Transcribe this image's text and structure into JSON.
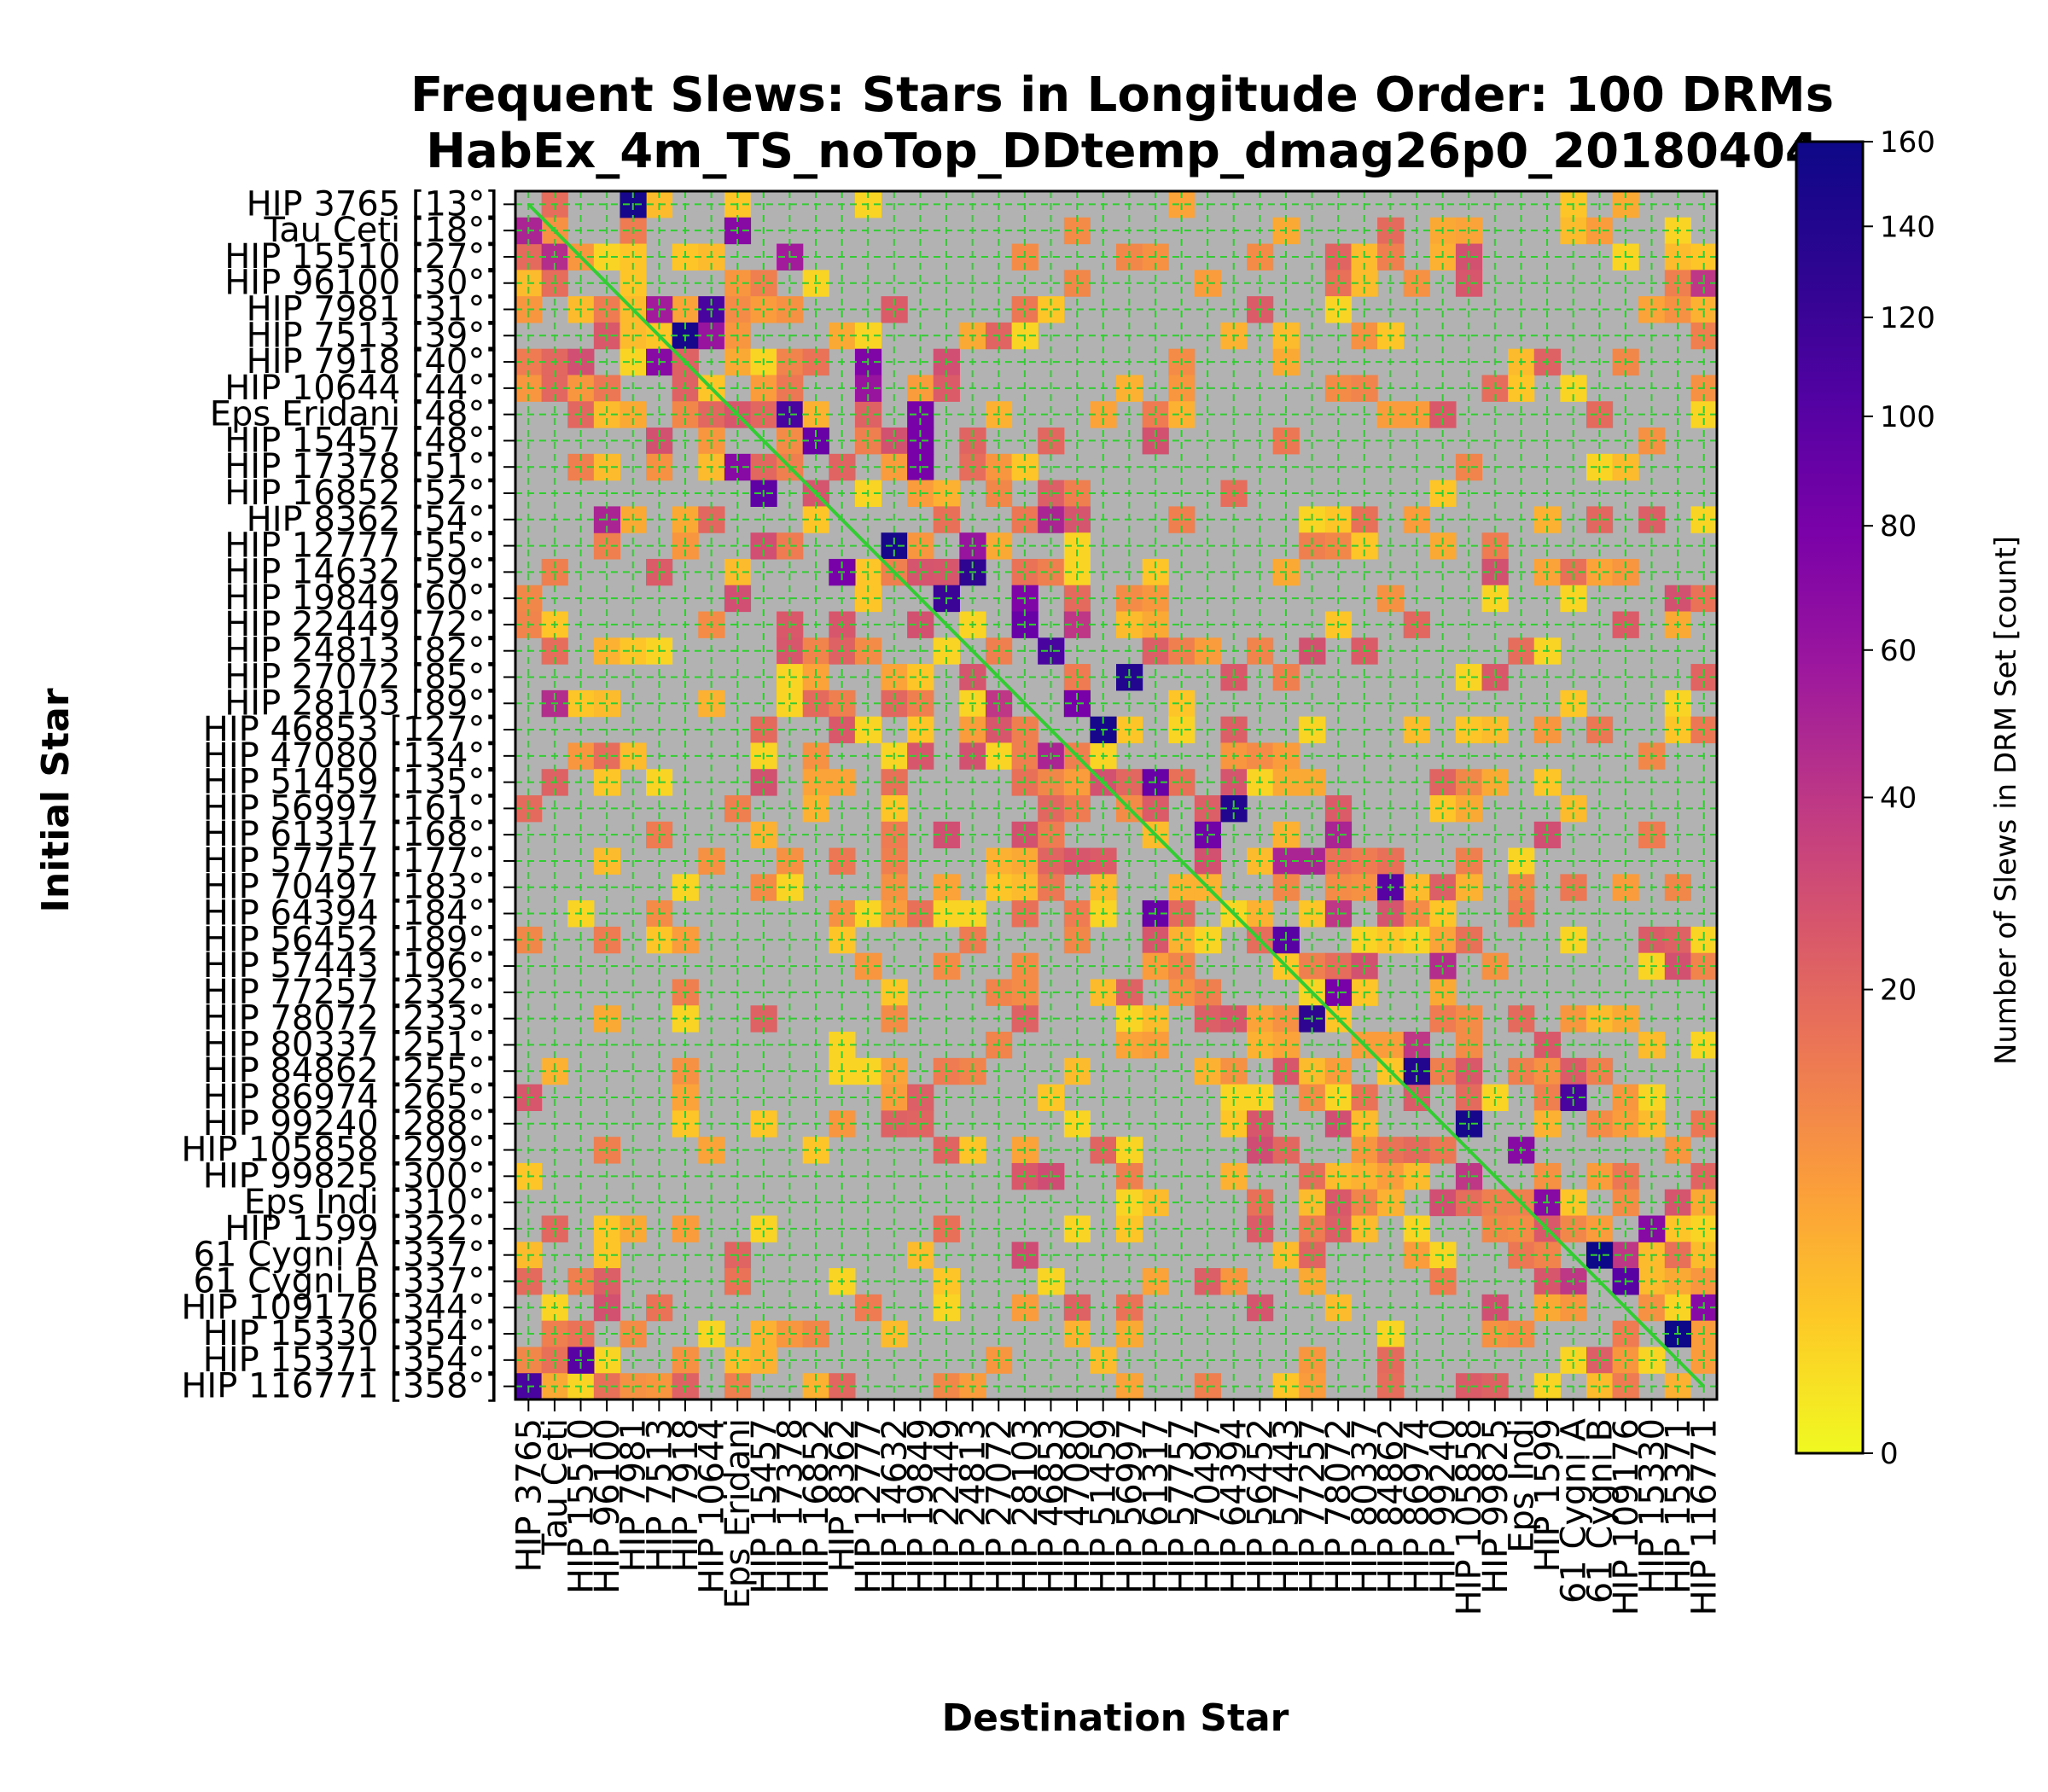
{
  "chart_data": {
    "type": "heatmap",
    "title_line1": "Frequent Slews: Stars in Longitude Order: 100 DRMs",
    "title_line2": "HabEx_4m_TS_noTop_DDtemp_dmag26p0_20180404",
    "xlabel": "Destination Star",
    "ylabel": "Initial Star",
    "colorbar_label": "Number of Slews in DRM Set [count]",
    "colorbar_ticks": [
      0,
      20,
      40,
      60,
      80,
      100,
      120,
      140,
      160
    ],
    "value_range": [
      0,
      160
    ],
    "colormap": "plasma_r",
    "background_color": "#b2b2b2",
    "grid": true,
    "grid_color": "#33cc33",
    "diagonal_color": "#33cc33",
    "rows": [
      "HIP 3765 [13°]",
      "Tau Ceti [18°]",
      "HIP 15510 [27°]",
      "HIP 96100 [30°]",
      "HIP 7981 [31°]",
      "HIP 7513 [39°]",
      "HIP 7918 [40°]",
      "HIP 10644 [44°]",
      "Eps Eridani [48°]",
      "HIP 15457 [48°]",
      "HIP 17378 [51°]",
      "HIP 16852 [52°]",
      "HIP 8362 [54°]",
      "HIP 12777 [55°]",
      "HIP 14632 [59°]",
      "HIP 19849 [60°]",
      "HIP 22449 [72°]",
      "HIP 24813 [82°]",
      "HIP 27072 [85°]",
      "HIP 28103 [89°]",
      "HIP 46853 [127°]",
      "HIP 47080 [134°]",
      "HIP 51459 [135°]",
      "HIP 56997 [161°]",
      "HIP 61317 [168°]",
      "HIP 57757 [177°]",
      "HIP 70497 [183°]",
      "HIP 64394 [184°]",
      "HIP 56452 [189°]",
      "HIP 57443 [196°]",
      "HIP 77257 [232°]",
      "HIP 78072 [233°]",
      "HIP 80337 [251°]",
      "HIP 84862 [255°]",
      "HIP 86974 [265°]",
      "HIP 99240 [288°]",
      "HIP 105858 [299°]",
      "HIP 99825 [300°]",
      "Eps Indi [310°]",
      "HIP 1599 [322°]",
      "61 Cygni A [337°]",
      "61 Cygni B [337°]",
      "HIP 109176 [344°]",
      "HIP 15330 [354°]",
      "HIP 15371 [354°]",
      "HIP 116771 [358°]"
    ],
    "columns": [
      "HIP 3765",
      "Tau Ceti",
      "HIP 15510",
      "HIP 96100",
      "HIP 7981",
      "HIP 7513",
      "HIP 7918",
      "HIP 10644",
      "Eps Eridani",
      "HIP 15457",
      "HIP 17378",
      "HIP 16852",
      "HIP 8362",
      "HIP 12777",
      "HIP 14632",
      "HIP 19849",
      "HIP 22449",
      "HIP 24813",
      "HIP 27072",
      "HIP 28103",
      "HIP 46853",
      "HIP 47080",
      "HIP 51459",
      "HIP 56997",
      "HIP 61317",
      "HIP 57757",
      "HIP 70497",
      "HIP 64394",
      "HIP 56452",
      "HIP 57443",
      "HIP 77257",
      "HIP 78072",
      "HIP 80337",
      "HIP 84862",
      "HIP 86974",
      "HIP 99240",
      "HIP 105858",
      "HIP 99825",
      "Eps Indi",
      "HIP 1599",
      "61 Cygni A",
      "61 Cygni B",
      "HIP 109176",
      "HIP 15330",
      "HIP 15371",
      "HIP 116771"
    ],
    "high_cells": [
      {
        "row": 0,
        "col": 4,
        "value": 150
      },
      {
        "row": 1,
        "col": 0,
        "value": 50
      },
      {
        "row": 1,
        "col": 8,
        "value": 70
      },
      {
        "row": 2,
        "col": 1,
        "value": 45
      },
      {
        "row": 2,
        "col": 10,
        "value": 55
      },
      {
        "row": 3,
        "col": 45,
        "value": 40
      },
      {
        "row": 4,
        "col": 7,
        "value": 110
      },
      {
        "row": 4,
        "col": 5,
        "value": 55
      },
      {
        "row": 5,
        "col": 6,
        "value": 150
      },
      {
        "row": 5,
        "col": 7,
        "value": 60
      },
      {
        "row": 6,
        "col": 5,
        "value": 70
      },
      {
        "row": 6,
        "col": 13,
        "value": 75
      },
      {
        "row": 7,
        "col": 13,
        "value": 60
      },
      {
        "row": 8,
        "col": 10,
        "value": 110
      },
      {
        "row": 8,
        "col": 15,
        "value": 80
      },
      {
        "row": 9,
        "col": 11,
        "value": 90
      },
      {
        "row": 9,
        "col": 15,
        "value": 80
      },
      {
        "row": 10,
        "col": 8,
        "value": 70
      },
      {
        "row": 10,
        "col": 15,
        "value": 80
      },
      {
        "row": 11,
        "col": 9,
        "value": 95
      },
      {
        "row": 12,
        "col": 3,
        "value": 50
      },
      {
        "row": 12,
        "col": 20,
        "value": 50
      },
      {
        "row": 13,
        "col": 14,
        "value": 150
      },
      {
        "row": 13,
        "col": 17,
        "value": 60
      },
      {
        "row": 14,
        "col": 12,
        "value": 80
      },
      {
        "row": 14,
        "col": 17,
        "value": 130
      },
      {
        "row": 15,
        "col": 16,
        "value": 120
      },
      {
        "row": 15,
        "col": 19,
        "value": 75
      },
      {
        "row": 16,
        "col": 19,
        "value": 90
      },
      {
        "row": 16,
        "col": 21,
        "value": 40
      },
      {
        "row": 17,
        "col": 20,
        "value": 110
      },
      {
        "row": 18,
        "col": 23,
        "value": 140
      },
      {
        "row": 19,
        "col": 1,
        "value": 45
      },
      {
        "row": 19,
        "col": 21,
        "value": 80
      },
      {
        "row": 19,
        "col": 18,
        "value": 40
      },
      {
        "row": 20,
        "col": 22,
        "value": 150
      },
      {
        "row": 21,
        "col": 20,
        "value": 50
      },
      {
        "row": 22,
        "col": 24,
        "value": 90
      },
      {
        "row": 23,
        "col": 27,
        "value": 140
      },
      {
        "row": 24,
        "col": 26,
        "value": 85
      },
      {
        "row": 24,
        "col": 31,
        "value": 50
      },
      {
        "row": 25,
        "col": 29,
        "value": 50
      },
      {
        "row": 25,
        "col": 30,
        "value": 50
      },
      {
        "row": 26,
        "col": 33,
        "value": 100
      },
      {
        "row": 27,
        "col": 24,
        "value": 90
      },
      {
        "row": 27,
        "col": 31,
        "value": 40
      },
      {
        "row": 28,
        "col": 29,
        "value": 100
      },
      {
        "row": 29,
        "col": 35,
        "value": 45
      },
      {
        "row": 30,
        "col": 31,
        "value": 80
      },
      {
        "row": 31,
        "col": 30,
        "value": 130
      },
      {
        "row": 32,
        "col": 34,
        "value": 40
      },
      {
        "row": 33,
        "col": 34,
        "value": 140
      },
      {
        "row": 34,
        "col": 40,
        "value": 110
      },
      {
        "row": 35,
        "col": 36,
        "value": 150
      },
      {
        "row": 36,
        "col": 38,
        "value": 70
      },
      {
        "row": 37,
        "col": 36,
        "value": 40
      },
      {
        "row": 38,
        "col": 39,
        "value": 70
      },
      {
        "row": 39,
        "col": 43,
        "value": 70
      },
      {
        "row": 40,
        "col": 41,
        "value": 160
      },
      {
        "row": 40,
        "col": 42,
        "value": 40
      },
      {
        "row": 41,
        "col": 42,
        "value": 100
      },
      {
        "row": 41,
        "col": 40,
        "value": 40
      },
      {
        "row": 42,
        "col": 45,
        "value": 70
      },
      {
        "row": 43,
        "col": 44,
        "value": 160
      },
      {
        "row": 44,
        "col": 2,
        "value": 100
      },
      {
        "row": 45,
        "col": 0,
        "value": 110
      }
    ],
    "background_cell_value_range": [
      1,
      30
    ],
    "background_cell_density": 0.32
  }
}
